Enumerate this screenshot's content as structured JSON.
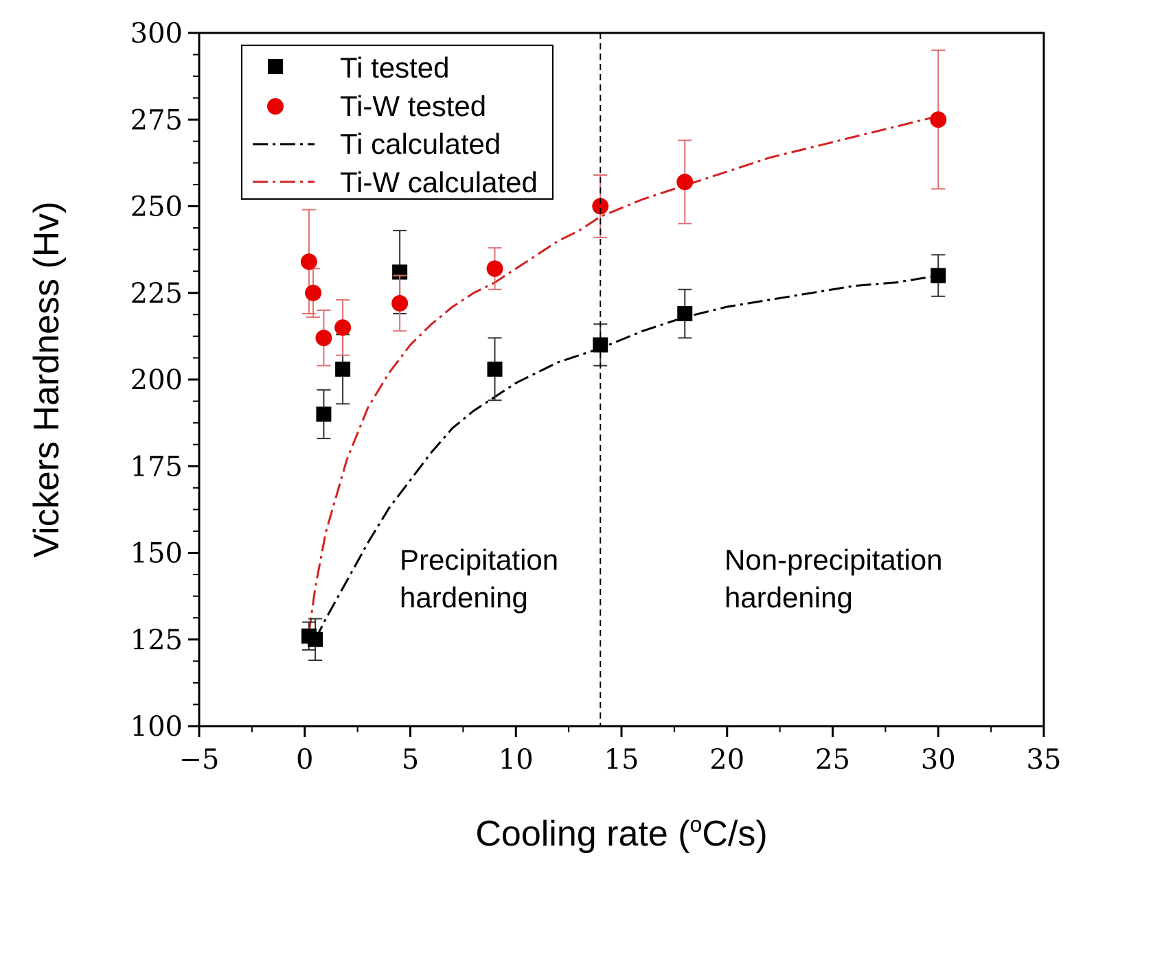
{
  "chart_data": {
    "type": "scatter",
    "title": "",
    "xlabel": "Cooling rate (",
    "xlabel_sup": "o",
    "xlabel_tail": "C/s)",
    "ylabel": "Vickers Hardness (Hv)",
    "xlim": [
      -5,
      35
    ],
    "ylim": [
      100,
      300
    ],
    "x_ticks": [
      -5,
      0,
      5,
      10,
      15,
      20,
      25,
      30,
      35
    ],
    "x_tick_labels": [
      "−5",
      "0",
      "5",
      "10",
      "15",
      "20",
      "25",
      "30",
      "35"
    ],
    "y_ticks": [
      100,
      125,
      150,
      175,
      200,
      225,
      250,
      275,
      300
    ],
    "y_tick_labels": [
      "100",
      "125",
      "150",
      "175",
      "200",
      "225",
      "250",
      "275",
      "300"
    ],
    "grid": false,
    "legend_position": "top-left",
    "series": [
      {
        "name": "Ti tested",
        "kind": "points",
        "marker": "square",
        "color": "#000000",
        "x": [
          0.2,
          0.5,
          0.9,
          1.8,
          4.5,
          9.0,
          14.0,
          18.0,
          30.0
        ],
        "y": [
          126,
          125,
          190,
          203,
          231,
          203,
          210,
          219,
          230
        ],
        "err": [
          4,
          6,
          7,
          10,
          12,
          9,
          6,
          7,
          6
        ]
      },
      {
        "name": "Ti-W tested",
        "kind": "points",
        "marker": "circle",
        "color": "#e60000",
        "x": [
          0.2,
          0.4,
          0.9,
          1.8,
          4.5,
          9.0,
          14.0,
          18.0,
          30.0
        ],
        "y": [
          234,
          225,
          212,
          215,
          222,
          232,
          250,
          257,
          275
        ],
        "err": [
          15,
          7,
          8,
          8,
          8,
          6,
          9,
          12,
          20
        ]
      },
      {
        "name": "Ti calculated",
        "kind": "line",
        "color": "#000000",
        "x": [
          0.5,
          1,
          2,
          3,
          4,
          5,
          6,
          7,
          8,
          9,
          10,
          11,
          12,
          13,
          14,
          16,
          18,
          20,
          22,
          24,
          26,
          28,
          30
        ],
        "y": [
          125,
          131,
          142,
          153,
          163,
          171,
          179,
          186,
          191,
          195,
          199,
          202,
          205,
          207,
          209,
          214,
          218,
          221,
          223,
          225,
          227,
          228,
          230
        ]
      },
      {
        "name": "Ti-W calculated",
        "kind": "line",
        "color": "#d42020",
        "x": [
          0.2,
          0.5,
          1,
          2,
          3,
          4,
          5,
          6,
          7,
          8,
          9,
          10,
          11,
          12,
          13,
          14,
          16,
          18,
          20,
          22,
          24,
          26,
          28,
          30
        ],
        "y": [
          127,
          140,
          156,
          177,
          192,
          202,
          210,
          216,
          221,
          225,
          228,
          232,
          236,
          240,
          243,
          247,
          252,
          256,
          260,
          264,
          267,
          270,
          273,
          276
        ]
      }
    ],
    "vline": {
      "x": 14,
      "style": "dashed"
    },
    "annotations": [
      {
        "lines": [
          "Precipitation",
          "hardening"
        ]
      },
      {
        "lines": [
          "Non-precipitation",
          "hardening"
        ]
      }
    ]
  }
}
